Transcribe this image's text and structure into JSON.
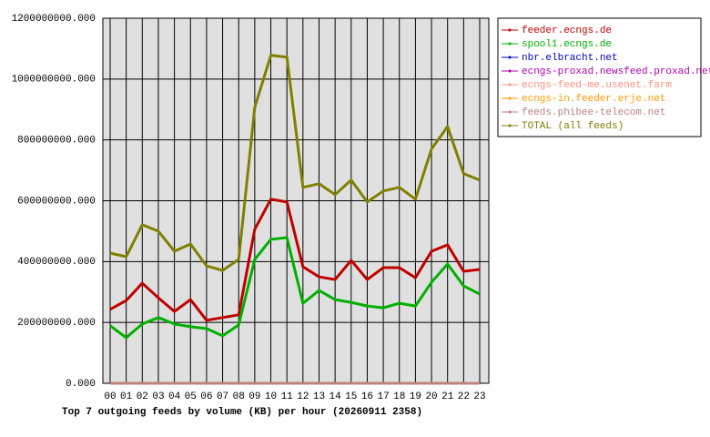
{
  "chart_data": {
    "type": "line",
    "title": "Top 7 outgoing feeds by volume (KB) per hour (20260911 2358)",
    "categories": [
      "00",
      "01",
      "02",
      "03",
      "04",
      "05",
      "06",
      "07",
      "08",
      "09",
      "10",
      "11",
      "12",
      "13",
      "14",
      "15",
      "16",
      "17",
      "18",
      "19",
      "20",
      "21",
      "22",
      "23"
    ],
    "series": [
      {
        "name": "feeder.ecngs.de",
        "color": "#c00000",
        "values": [
          243000000,
          272000000,
          329000000,
          281000000,
          236000000,
          275000000,
          207000000,
          216000000,
          225000000,
          506000000,
          605000000,
          596000000,
          383000000,
          350000000,
          341000000,
          404000000,
          341000000,
          380000000,
          380000000,
          347000000,
          434000000,
          455000000,
          368000000,
          374000000
        ]
      },
      {
        "name": "spool1.ecngs.de",
        "color": "#00b000",
        "values": [
          189000000,
          150000000,
          195000000,
          216000000,
          195000000,
          186000000,
          180000000,
          156000000,
          192000000,
          407000000,
          473000000,
          479000000,
          263000000,
          305000000,
          275000000,
          266000000,
          254000000,
          248000000,
          263000000,
          254000000,
          332000000,
          392000000,
          320000000,
          293000000
        ]
      },
      {
        "name": "nbr.elbracht.net",
        "color": "#0000c0",
        "values": [
          0,
          0,
          0,
          0,
          0,
          0,
          0,
          0,
          0,
          0,
          0,
          0,
          0,
          0,
          0,
          0,
          0,
          0,
          0,
          0,
          0,
          0,
          0,
          0
        ]
      },
      {
        "name": "ecngs-proxad.newsfeed.proxad.net",
        "color": "#b000b0",
        "values": [
          0,
          0,
          0,
          0,
          0,
          0,
          0,
          0,
          0,
          0,
          0,
          0,
          0,
          0,
          0,
          0,
          0,
          0,
          0,
          0,
          0,
          0,
          0,
          0
        ]
      },
      {
        "name": "ecngs-feed-me.usenet.farm",
        "color": "#ff9080",
        "values": [
          0,
          0,
          0,
          0,
          0,
          0,
          0,
          0,
          0,
          0,
          0,
          0,
          0,
          0,
          0,
          0,
          0,
          0,
          0,
          0,
          0,
          0,
          0,
          0
        ]
      },
      {
        "name": "ecngs-in.feeder.erje.net",
        "color": "#ff9900",
        "values": [
          0,
          0,
          0,
          0,
          0,
          0,
          0,
          0,
          0,
          0,
          0,
          0,
          0,
          0,
          0,
          0,
          0,
          0,
          0,
          0,
          0,
          0,
          0,
          0
        ]
      },
      {
        "name": "feeds.phibee-telecom.net",
        "color": "#c08080",
        "values": [
          0,
          0,
          0,
          0,
          0,
          0,
          0,
          0,
          0,
          0,
          0,
          0,
          0,
          0,
          0,
          0,
          0,
          0,
          0,
          0,
          0,
          0,
          0,
          0
        ]
      },
      {
        "name": "TOTAL (all feeds)",
        "color": "#808000",
        "values": [
          428000000,
          416000000,
          521000000,
          500000000,
          434000000,
          458000000,
          386000000,
          371000000,
          407000000,
          907000000,
          1078000000,
          1072000000,
          644000000,
          656000000,
          620000000,
          668000000,
          596000000,
          632000000,
          644000000,
          605000000,
          770000000,
          844000000,
          689000000,
          668000000
        ]
      }
    ],
    "ylim": [
      0,
      1200000000
    ],
    "yticks": [
      {
        "value": 0,
        "label": "0.000"
      },
      {
        "value": 200000000,
        "label": "200000000.000"
      },
      {
        "value": 400000000,
        "label": "400000000.000"
      },
      {
        "value": 600000000,
        "label": "600000000.000"
      },
      {
        "value": 800000000,
        "label": "800000000.000"
      },
      {
        "value": 1000000000,
        "label": "1000000000.000"
      },
      {
        "value": 1200000000,
        "label": "1200000000.000"
      }
    ],
    "grid": true
  }
}
